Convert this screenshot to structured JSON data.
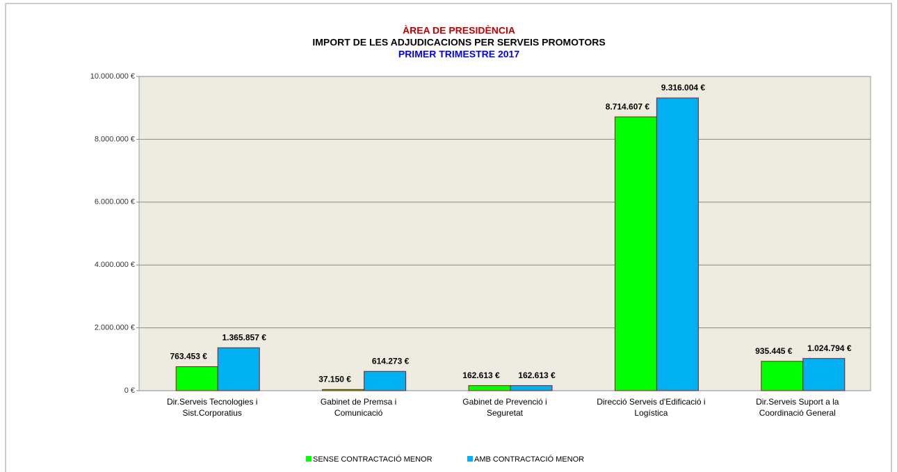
{
  "chart_data": {
    "type": "bar",
    "title": [
      "ÀREA DE PRESIDÈNCIA",
      "IMPORT DE LES ADJUDICACIONS  PER SERVEIS PROMOTORS",
      "PRIMER TRIMESTRE 2017"
    ],
    "title_colors": [
      "#c00000",
      "#000000",
      "#0000ff"
    ],
    "categories": [
      [
        "Dir.Serveis Tecnologies i",
        "Sist.Corporatius"
      ],
      [
        "Gabinet de Premsa i",
        "Comunicació"
      ],
      [
        "Gabinet de Prevenció i",
        "Seguretat"
      ],
      [
        "Direcció Serveis d'Edificació i",
        "Logística"
      ],
      [
        "Dir.Serveis Suport a la",
        "Coordinació General"
      ]
    ],
    "series": [
      {
        "name": "SENSE CONTRACTACIÓ MENOR",
        "color": "#00ff00",
        "values": [
          763453,
          37150,
          162613,
          8714607,
          935445
        ],
        "value_labels": [
          "763.453 €",
          "37.150 €",
          "162.613 €",
          "8.714.607 €",
          "935.445 €"
        ]
      },
      {
        "name": "AMB CONTRACTACIÓ MENOR",
        "color": "#00b0f0",
        "values": [
          1365857,
          614273,
          162613,
          9316004,
          1024794
        ],
        "value_labels": [
          "1.365.857 €",
          "614.273 €",
          "162.613 €",
          "9.316.004 €",
          "1.024.794 €"
        ]
      }
    ],
    "ylim": [
      0,
      10000000
    ],
    "yticks": [
      {
        "value": 0,
        "label": "0 €"
      },
      {
        "value": 2000000,
        "label": "2.000.000 €"
      },
      {
        "value": 4000000,
        "label": "4.000.000 €"
      },
      {
        "value": 6000000,
        "label": "6.000.000 €"
      },
      {
        "value": 8000000,
        "label": "8.000.000 €"
      },
      {
        "value": 10000000,
        "label": "10.000.000 €"
      }
    ],
    "grid": true,
    "legend": "bottom",
    "plot_background": "#eeece1"
  }
}
